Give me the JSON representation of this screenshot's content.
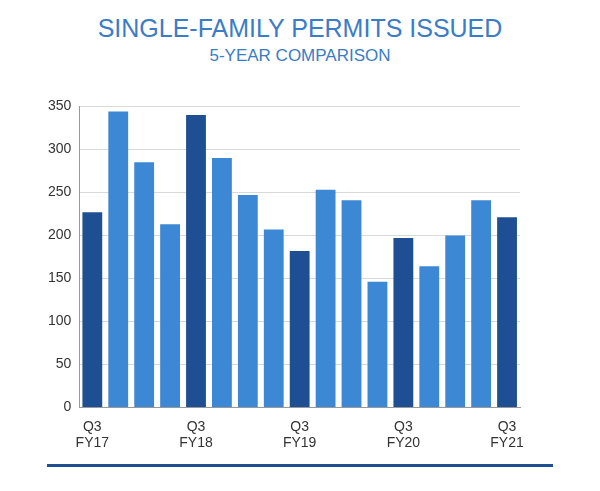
{
  "chart_data": {
    "type": "bar",
    "title": "SINGLE-FAMILY PERMITS ISSUED",
    "subtitle": "5-YEAR COMPARISON",
    "categories": [
      "Q3 FY17",
      null,
      null,
      null,
      "Q3 FY18",
      null,
      null,
      null,
      "Q3 FY19",
      null,
      null,
      null,
      "Q3 FY20",
      null,
      null,
      null,
      "Q3 FY21"
    ],
    "values": [
      227,
      344,
      285,
      213,
      340,
      290,
      247,
      207,
      182,
      253,
      241,
      146,
      197,
      164,
      200,
      241,
      221
    ],
    "colors": [
      "#1f4f93",
      "#3d88d4",
      "#3d88d4",
      "#3d88d4",
      "#1f4f93",
      "#3d88d4",
      "#3d88d4",
      "#3d88d4",
      "#1f4f93",
      "#3d88d4",
      "#3d88d4",
      "#3d88d4",
      "#1f4f93",
      "#3d88d4",
      "#3d88d4",
      "#3d88d4",
      "#1f4f93"
    ],
    "ylim": [
      0,
      350
    ],
    "yticks": [
      0,
      50,
      100,
      150,
      200,
      250,
      300,
      350
    ],
    "grid": true
  }
}
